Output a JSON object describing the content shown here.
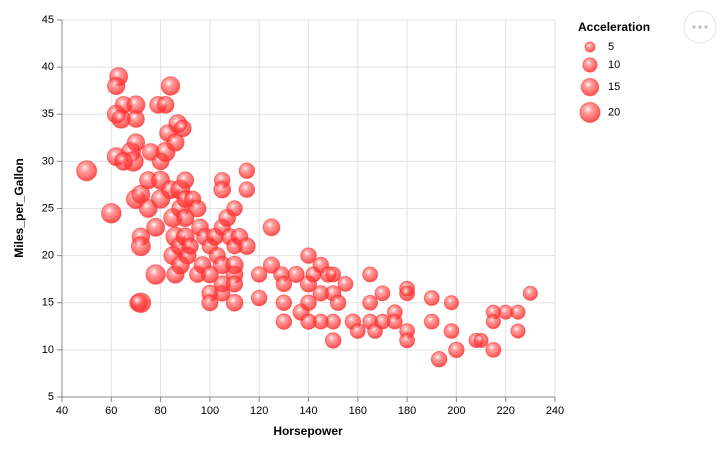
{
  "chart_data": {
    "type": "scatter",
    "x_label": "Horsepower",
    "y_label": "Miles_per_Gallon",
    "legend_title": "Acceleration",
    "color": "#ff3333",
    "grid": true,
    "legend_position": "right",
    "xlim": [
      40,
      240
    ],
    "xticks": [
      40,
      60,
      80,
      100,
      120,
      140,
      160,
      180,
      200,
      220,
      240
    ],
    "ylim": [
      5,
      45
    ],
    "yticks": [
      5,
      10,
      15,
      20,
      25,
      30,
      35,
      40,
      45
    ],
    "size_legend": [
      5,
      10,
      15,
      20
    ],
    "x": [
      50,
      60,
      63,
      62,
      65,
      62,
      64,
      68,
      69,
      62,
      65,
      70,
      70,
      70,
      70,
      72,
      72,
      72,
      72,
      71,
      75,
      75,
      76,
      78,
      78,
      79,
      80,
      80,
      80,
      82,
      82,
      83,
      84,
      84,
      85,
      85,
      86,
      86,
      86,
      87,
      88,
      88,
      88,
      88,
      89,
      90,
      90,
      90,
      90,
      91,
      92,
      93,
      95,
      95,
      96,
      97,
      98,
      100,
      100,
      100,
      100,
      102,
      103,
      105,
      105,
      105,
      105,
      105,
      105,
      107,
      108,
      110,
      110,
      110,
      110,
      110,
      110,
      112,
      115,
      115,
      115,
      120,
      120,
      125,
      125,
      129,
      130,
      130,
      130,
      135,
      137,
      140,
      140,
      140,
      140,
      142,
      145,
      145,
      145,
      148,
      150,
      150,
      150,
      150,
      152,
      155,
      158,
      160,
      165,
      165,
      165,
      167,
      170,
      170,
      175,
      175,
      180,
      180,
      180,
      180,
      190,
      190,
      193,
      198,
      198,
      200,
      208,
      210,
      215,
      215,
      215,
      220,
      225,
      225,
      230
    ],
    "y": [
      29,
      24.5,
      39,
      38,
      36,
      35,
      34.5,
      31,
      30,
      30.5,
      30,
      36,
      34.5,
      32,
      26,
      26.5,
      22,
      21,
      15,
      15,
      28,
      25,
      31,
      18,
      23,
      36,
      28,
      26,
      30,
      31,
      36,
      33,
      38,
      27,
      24,
      20,
      22,
      18,
      32,
      34,
      27,
      25,
      19,
      21,
      33.5,
      28,
      24,
      22,
      26,
      20,
      21,
      26,
      25,
      18,
      23,
      19,
      22,
      18,
      21,
      16,
      15,
      22,
      20,
      28,
      27,
      23,
      19,
      16,
      17,
      24,
      22,
      25,
      21,
      18,
      17,
      15,
      19,
      22,
      29,
      27,
      21,
      18,
      15.5,
      23,
      19,
      18,
      17,
      15,
      13,
      18,
      14,
      20,
      17,
      15,
      13,
      18,
      19,
      16,
      13,
      18,
      16,
      13,
      11,
      18,
      15,
      17,
      13,
      12,
      18,
      15,
      13,
      12,
      16,
      13,
      14,
      13,
      16.5,
      16,
      12,
      11,
      15.5,
      13,
      9,
      15,
      12,
      10,
      11,
      11,
      14,
      10,
      13,
      14,
      14,
      12,
      16
    ],
    "size": [
      20,
      19,
      16,
      15,
      14,
      16,
      17,
      18,
      19,
      16,
      16,
      16,
      14,
      15,
      18,
      16,
      15,
      18,
      19,
      15,
      15,
      16,
      14,
      19,
      16,
      14,
      16,
      17,
      14,
      18,
      14,
      14,
      17,
      16,
      17,
      16,
      18,
      15,
      15,
      16,
      18,
      15,
      16,
      17,
      14,
      14,
      15,
      16,
      14,
      14,
      13,
      13,
      14,
      13,
      14,
      14,
      14,
      14,
      12,
      13,
      13,
      14,
      13,
      12,
      14,
      13,
      15,
      12,
      13,
      14,
      13,
      12,
      12,
      14,
      13,
      14,
      15,
      14,
      12,
      12,
      14,
      12,
      12,
      14,
      13,
      12,
      12,
      12,
      12,
      13,
      13,
      12,
      13,
      12,
      12,
      11,
      12,
      12,
      11,
      12,
      12,
      11,
      12,
      11,
      12,
      11,
      12,
      11,
      11,
      11,
      11,
      11,
      11,
      11,
      11,
      11,
      11,
      11,
      11,
      11,
      11,
      11,
      12,
      10,
      11,
      12,
      10,
      10,
      10,
      11,
      10,
      10,
      10,
      10,
      10
    ]
  }
}
